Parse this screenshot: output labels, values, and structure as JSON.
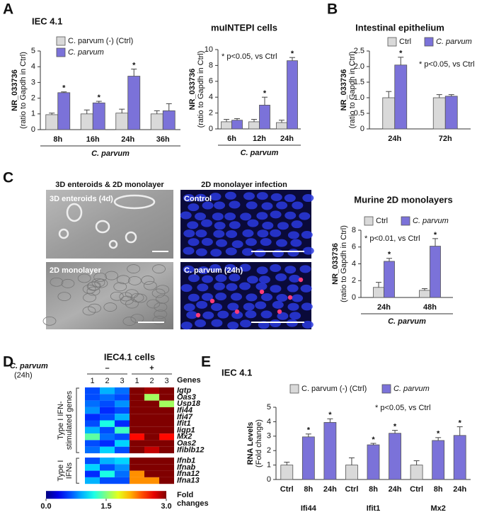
{
  "panel_labels": [
    "A",
    "B",
    "C",
    "D",
    "E"
  ],
  "micrographs": {
    "titles": [
      "3D enteroids & 2D monolayer",
      "2D monolayer infection"
    ],
    "labels": [
      "3D enteroids (4d)",
      "2D monolayer",
      "Control",
      "C. parvum (24h)"
    ]
  },
  "chart_data": [
    {
      "type": "bar",
      "title": "IEC 4.1",
      "categories": [
        "8h",
        "16h",
        "24h",
        "36h"
      ],
      "x_label": "C. parvum",
      "y_label": "NR_033736",
      "y_label_sub": "(ratio to Gapdh in Ctrl)",
      "ylim": [
        0,
        5
      ],
      "yticks": [
        0,
        1,
        2,
        3,
        4,
        5
      ],
      "series": [
        {
          "name": "C. parvum (-) (Ctrl)",
          "color": "#d9d9d9",
          "values": [
            0.95,
            1.0,
            1.05,
            1.0
          ],
          "errors": [
            0.1,
            0.25,
            0.25,
            0.2
          ]
        },
        {
          "name": "C. parvum",
          "color": "#7b72d9",
          "values": [
            2.35,
            1.7,
            3.4,
            1.2
          ],
          "errors": [
            0.05,
            0.1,
            0.45,
            0.45
          ],
          "significance": [
            "*",
            "*",
            "*",
            null
          ]
        }
      ]
    },
    {
      "type": "bar",
      "title": "muINTEPI cells",
      "categories": [
        "6h",
        "12h",
        "24h"
      ],
      "x_label": "C. parvum",
      "y_label": "NR_033736",
      "y_label_sub": "(ratio to Gapdh in Ctrl)",
      "ylim": [
        0,
        10
      ],
      "yticks": [
        0,
        2,
        4,
        6,
        8,
        10
      ],
      "annotation": "* p<0.05, vs Ctrl",
      "series": [
        {
          "color": "#d9d9d9",
          "values": [
            0.9,
            0.9,
            0.8
          ],
          "errors": [
            0.3,
            0.3,
            0.3
          ]
        },
        {
          "color": "#7b72d9",
          "values": [
            1.1,
            3.0,
            8.6
          ],
          "errors": [
            0.2,
            1.0,
            0.4
          ],
          "significance": [
            null,
            "*",
            "*"
          ]
        }
      ]
    },
    {
      "type": "bar",
      "title": "Intestinal epithelium",
      "categories": [
        "24h",
        "72h"
      ],
      "y_label": "NR_033736",
      "y_label_sub": "(ratio to Gapdh in Ctrl)",
      "ylim": [
        0,
        2.5
      ],
      "yticks": [
        0,
        0.5,
        {
          "value": 1,
          "label": "1.0"
        },
        1.5,
        {
          "value": 2,
          "label": "2.0"
        },
        2.5
      ],
      "annotation": "* p<0.05, vs Ctrl",
      "series": [
        {
          "name": "Ctrl",
          "color": "#d9d9d9",
          "values": [
            1.0,
            1.0
          ],
          "errors": [
            0.2,
            0.1
          ]
        },
        {
          "name": "C. parvum",
          "color": "#7b72d9",
          "values": [
            2.05,
            1.05
          ],
          "errors": [
            0.25,
            0.05
          ],
          "significance": [
            "*",
            null
          ]
        }
      ]
    },
    {
      "type": "bar",
      "title": "Murine 2D monolayers",
      "categories": [
        "24h",
        "48h"
      ],
      "x_label": "C. parvum",
      "y_label": "NR_033736",
      "y_label_sub": "(ratio to Gapdh in Ctrl)",
      "ylim": [
        0,
        8
      ],
      "yticks": [
        0,
        2,
        4,
        6,
        8
      ],
      "annotation": "* p<0.01, vs Ctrl",
      "series": [
        {
          "name": "Ctrl",
          "color": "#d9d9d9",
          "values": [
            1.2,
            0.85
          ],
          "errors": [
            0.6,
            0.2
          ]
        },
        {
          "name": "C. parvum",
          "color": "#7b72d9",
          "values": [
            4.3,
            6.1
          ],
          "errors": [
            0.35,
            0.9
          ],
          "significance": [
            "*",
            "*"
          ]
        }
      ]
    },
    {
      "type": "heatmap",
      "title": "IEC4.1 cells",
      "condition_label": "C. parvum",
      "condition_sub": "(24h)",
      "column_groups": [
        "–",
        "+"
      ],
      "columns": [
        "1",
        "2",
        "3",
        "1",
        "2",
        "3"
      ],
      "rows_label": "Genes",
      "row_groups": [
        [
          "Type I IFN-",
          "stimulated genes"
        ],
        [
          "Type I",
          "IFNs"
        ]
      ],
      "rows": [
        [
          "Igtp",
          "Oas3",
          "Usp18",
          "Ifi44",
          "Ifi47",
          "Ifit1",
          "Iigp1",
          "Mx2",
          "Oas2",
          "Ifiblb12"
        ],
        [
          "Ifnb1",
          "Ifnab",
          "Ifna12",
          "Ifna13"
        ]
      ],
      "values": [
        [
          [
            0.6,
            0.9,
            0.7,
            3.0,
            2.9,
            3.0
          ],
          [
            0.6,
            0.7,
            0.6,
            3.0,
            1.6,
            3.0
          ],
          [
            0.7,
            0.6,
            0.8,
            3.0,
            3.0,
            1.6
          ],
          [
            0.8,
            0.5,
            0.6,
            3.0,
            3.0,
            3.0
          ],
          [
            0.5,
            0.6,
            0.9,
            3.0,
            3.0,
            3.0
          ],
          [
            0.6,
            1.2,
            0.5,
            3.0,
            3.0,
            3.0
          ],
          [
            0.9,
            0.6,
            1.3,
            3.0,
            3.0,
            3.0
          ],
          [
            1.4,
            0.7,
            0.6,
            2.6,
            3.0,
            2.6
          ],
          [
            0.6,
            0.5,
            1.0,
            3.0,
            3.0,
            3.0
          ],
          [
            0.7,
            1.0,
            0.6,
            3.0,
            2.8,
            3.0
          ]
        ],
        [
          [
            0.6,
            0.9,
            1.0,
            3.0,
            3.0,
            3.0
          ],
          [
            1.0,
            0.6,
            0.8,
            3.0,
            3.0,
            3.0
          ],
          [
            0.5,
            1.2,
            0.7,
            2.2,
            3.0,
            3.0
          ],
          [
            0.9,
            0.6,
            0.6,
            2.2,
            2.2,
            3.0
          ]
        ]
      ],
      "clim": [
        0,
        3
      ],
      "cticks": [
        {
          "value": 0,
          "label": "0.0"
        },
        1.5,
        {
          "value": 3,
          "label": "3.0"
        }
      ],
      "colorbar_label": [
        "Fold",
        "changes"
      ]
    },
    {
      "type": "bar",
      "title": "IEC 4.1",
      "categories": [
        "Ctrl",
        "8h",
        "24h",
        "Ctrl",
        "8h",
        "24h",
        "Ctrl",
        "8h",
        "24h"
      ],
      "groups": [
        "Ifi44",
        "Ifit1",
        "Mx2"
      ],
      "y_label": "RNA Levels",
      "y_label_sub": "(Fold change)",
      "ylim": [
        0,
        5
      ],
      "yticks": [
        0,
        1,
        2,
        3,
        4,
        5
      ],
      "annotation": "* p<0.05, vs Ctrl",
      "series": [
        {
          "name": "C. parvum (-) (Ctrl)",
          "color": "#d9d9d9",
          "values": [
            1.0,
            null,
            null,
            1.0,
            null,
            null,
            1.0,
            null,
            null
          ],
          "errors": [
            0.2,
            null,
            null,
            0.5,
            null,
            null,
            0.3,
            null,
            null
          ]
        },
        {
          "name": "C. parvum",
          "color": "#7b72d9",
          "values": [
            null,
            2.95,
            3.95,
            null,
            2.4,
            3.2,
            null,
            2.7,
            3.05
          ],
          "errors": [
            null,
            0.2,
            0.25,
            null,
            0.1,
            0.2,
            null,
            0.2,
            0.6
          ],
          "significance": [
            null,
            "*",
            "*",
            null,
            "*",
            "*",
            null,
            "*",
            "*"
          ]
        }
      ]
    }
  ]
}
